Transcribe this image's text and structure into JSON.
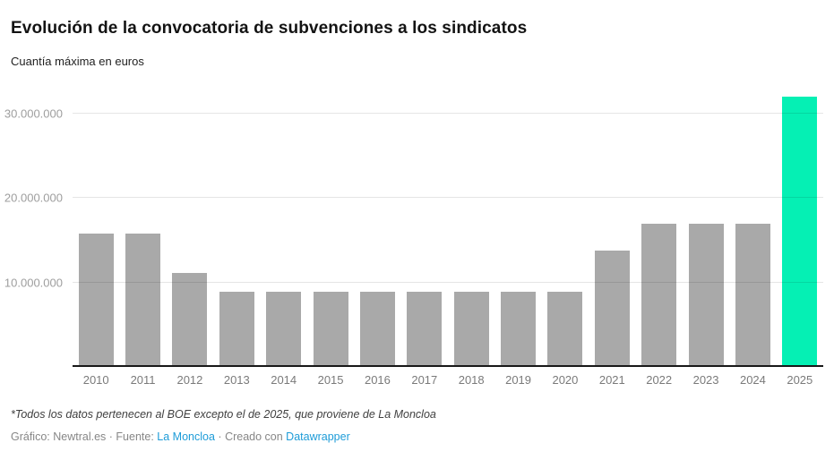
{
  "header": {
    "title": "Evolución de la convocatoria de subvenciones a los sindicatos",
    "subtitle": "Cuantía máxima en euros"
  },
  "chart_data": {
    "type": "bar",
    "title": "Evolución de la convocatoria de subvenciones a los sindicatos",
    "subtitle": "Cuantía máxima en euros",
    "categories": [
      "2010",
      "2011",
      "2012",
      "2013",
      "2014",
      "2015",
      "2016",
      "2017",
      "2018",
      "2019",
      "2020",
      "2021",
      "2022",
      "2023",
      "2024",
      "2025"
    ],
    "values": [
      15800000,
      15800000,
      11100000,
      8900000,
      8900000,
      8900000,
      8900000,
      8900000,
      8900000,
      8900000,
      8900000,
      13800000,
      16900000,
      16900000,
      16900000,
      32000000
    ],
    "highlight_category": "2025",
    "yticks": [
      {
        "value": 10000000,
        "label": "10.000.000"
      },
      {
        "value": 20000000,
        "label": "20.000.000"
      },
      {
        "value": 30000000,
        "label": "30.000.000"
      }
    ],
    "ylim": [
      0,
      32800000
    ],
    "grid": "horizontal",
    "legend": "none",
    "xlabel": "",
    "ylabel": "Cuantía máxima en euros"
  },
  "colors": {
    "bar": "#a9a9a9",
    "highlight": "#05f0b4",
    "axis": "#181818",
    "link": "#1e9cd8"
  },
  "footer": {
    "note": "*Todos los datos pertenecen al BOE excepto el de 2025, que proviene de La Moncloa",
    "credit": "Gráfico: Newtral.es",
    "dot1": "·",
    "source_label": "Fuente:",
    "source_link": "La Moncloa",
    "dot2": "·",
    "created_label": "Creado con",
    "created_link": "Datawrapper"
  }
}
